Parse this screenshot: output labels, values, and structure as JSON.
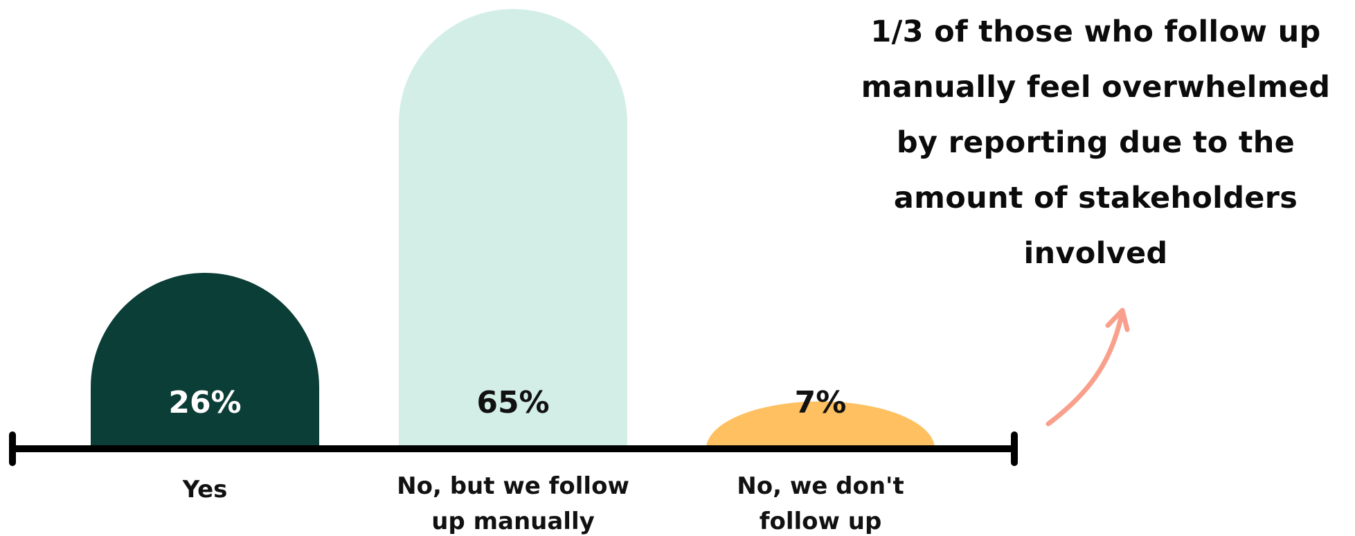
{
  "chart_data": {
    "type": "bar",
    "categories": [
      {
        "line1": "Yes",
        "line2": ""
      },
      {
        "line1": "No, but we follow",
        "line2": "up manually"
      },
      {
        "line1": "No, we don't",
        "line2": "follow up"
      }
    ],
    "values": [
      26,
      65,
      7
    ],
    "value_labels": [
      "26%",
      "65%",
      "7%"
    ],
    "colors": [
      "#0b3e36",
      "#d3eee6",
      "#fec060"
    ],
    "label_colors": [
      "#ffffff",
      "#111111",
      "#111111"
    ],
    "ylim": [
      0,
      65
    ],
    "axis_color": "#000000"
  },
  "callout": {
    "text": "1/3 of those who follow up manually feel overwhelmed by reporting due to the amount of stakeholders involved",
    "arrow_color": "#f9a08c"
  }
}
